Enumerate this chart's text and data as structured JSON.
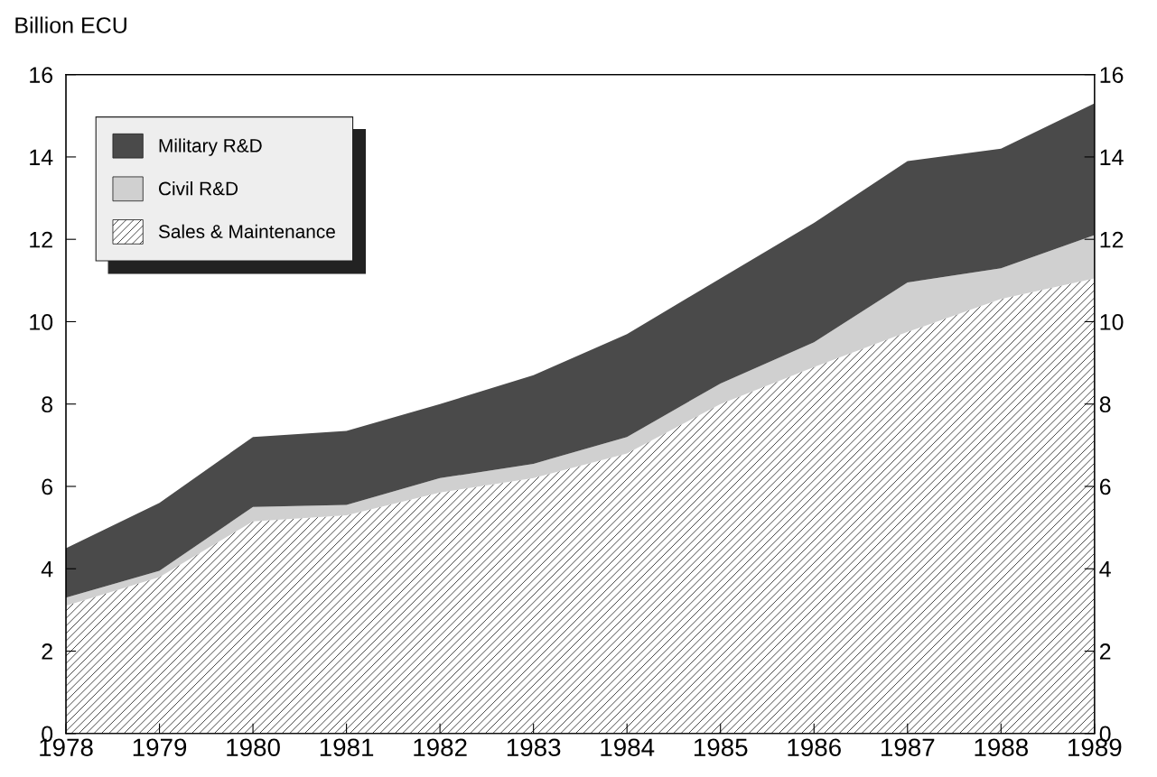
{
  "chart_data": {
    "type": "area",
    "stacked": true,
    "ylabel": "Billion ECU",
    "x": [
      1978,
      1979,
      1980,
      1981,
      1982,
      1983,
      1984,
      1985,
      1986,
      1987,
      1988,
      1989
    ],
    "series": [
      {
        "name": "Sales & Maintenance",
        "color": "#ffffff",
        "values": [
          3.1,
          3.8,
          5.15,
          5.3,
          5.85,
          6.2,
          6.8,
          8.0,
          8.9,
          9.75,
          10.55,
          11.05
        ]
      },
      {
        "name": "Civil R&D",
        "color": "#d0d0d0",
        "values": [
          0.2,
          0.15,
          0.35,
          0.25,
          0.35,
          0.35,
          0.4,
          0.5,
          0.6,
          1.2,
          0.75,
          1.05
        ]
      },
      {
        "name": "Military R&D",
        "color": "#4a4a4a",
        "values": [
          1.2,
          1.65,
          1.7,
          1.8,
          1.8,
          2.15,
          2.5,
          2.55,
          2.9,
          2.95,
          2.9,
          3.2
        ]
      }
    ],
    "xlim": [
      1978,
      1989
    ],
    "xticks": [
      1978,
      1979,
      1980,
      1981,
      1982,
      1983,
      1984,
      1985,
      1986,
      1987,
      1988,
      1989
    ],
    "ylim": [
      0,
      16
    ],
    "yticks": [
      0,
      2,
      4,
      6,
      8,
      10,
      12,
      14,
      16
    ],
    "y2lim": [
      0,
      16
    ],
    "y2ticks": [
      0,
      2,
      4,
      6,
      8,
      10,
      12,
      14,
      16
    ],
    "grid": false,
    "legend": "top left"
  }
}
